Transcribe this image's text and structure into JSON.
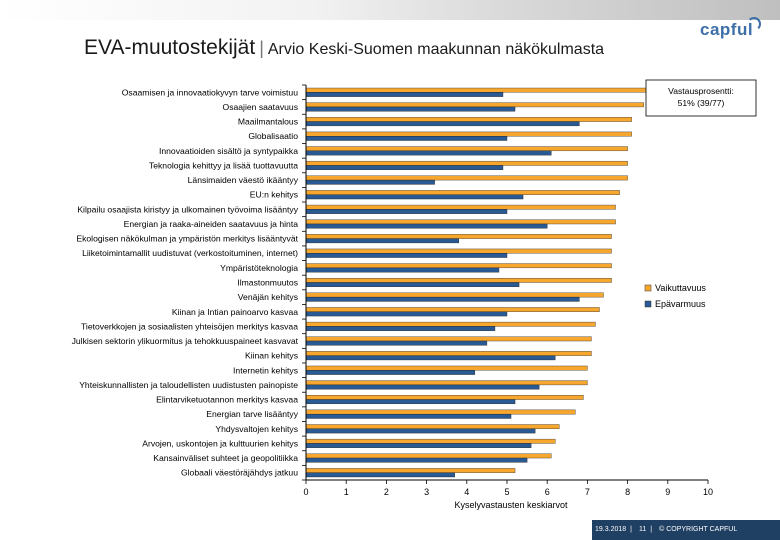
{
  "header": {
    "title": "EVA-muutostekijät",
    "separator": "|",
    "subtitle": "Arvio Keski-Suomen maakunnan näkökulmasta",
    "logo": "capful"
  },
  "footer": {
    "date": "19.3.2018",
    "separator": "|",
    "page": "11",
    "copyright": "© COPYRIGHT CAPFUL"
  },
  "colors": {
    "series_a": "#f7a72e",
    "series_b": "#2a5a94",
    "grid": "#999999"
  },
  "chart_data": {
    "type": "bar",
    "orientation": "horizontal",
    "xlabel": "Kyselyvastausten keskiarvot",
    "xlim": [
      0,
      10
    ],
    "xticks": [
      "0",
      "1",
      "2",
      "3",
      "4",
      "5",
      "6",
      "7",
      "8",
      "9",
      "10"
    ],
    "annotation": [
      "Vastausprosentti:",
      "51% (39/77)"
    ],
    "legend_position": "right",
    "categories": [
      "Osaamisen ja innovaatiokyvyn tarve voimistuu",
      "Osaajien saatavuus",
      "Maailmantalous",
      "Globalisaatio",
      "Innovaatioiden sisältö ja syntypaikka",
      "Teknologia kehittyy ja lisää tuottavuutta",
      "Länsimaiden väestö ikääntyy",
      "EU:n kehitys",
      "Kilpailu osaajista kiristyy ja ulkomainen työvoima lisääntyy",
      "Energian ja raaka-aineiden saatavuus ja hinta",
      "Ekologisen näkökulman ja ympäristön merkitys lisääntyvät",
      "Liiketoimintamallit uudistuvat (verkostoituminen, internet)",
      "Ympäristöteknologia",
      "Ilmastonmuutos",
      "Venäjän kehitys",
      "Kiinan ja Intian painoarvo kasvaa",
      "Tietoverkkojen ja sosiaalisten yhteisöjen merkitys kasvaa",
      "Julkisen sektorin ylikuormitus ja tehokkuuspaineet kasvavat",
      "Kiinan kehitys",
      "Internetin kehitys",
      "Yhteiskunnallisten ja taloudellisten uudistusten painopiste",
      "Elintarviketuotannon merkitys kasvaa",
      "Energian tarve lisääntyy",
      "Yhdysvaltojen kehitys",
      "Arvojen, uskontojen ja kulttuurien kehitys",
      "Kansainväliset suhteet ja geopolitiikka",
      "Globaali väestöräjähdys jatkuu"
    ],
    "series": [
      {
        "name": "Vaikuttavuus",
        "values": [
          8.5,
          8.4,
          8.1,
          8.1,
          8.0,
          8.0,
          8.0,
          7.8,
          7.7,
          7.7,
          7.6,
          7.6,
          7.6,
          7.6,
          7.4,
          7.3,
          7.2,
          7.1,
          7.1,
          7.0,
          7.0,
          6.9,
          6.7,
          6.3,
          6.2,
          6.1,
          5.2
        ]
      },
      {
        "name": "Epävarmuus",
        "values": [
          4.9,
          5.2,
          6.8,
          5.0,
          6.1,
          4.9,
          3.2,
          5.4,
          5.0,
          6.0,
          3.8,
          5.0,
          4.8,
          5.3,
          6.8,
          5.0,
          4.7,
          4.5,
          6.2,
          4.2,
          5.8,
          5.2,
          5.1,
          5.7,
          5.6,
          5.5,
          3.7
        ]
      }
    ]
  }
}
